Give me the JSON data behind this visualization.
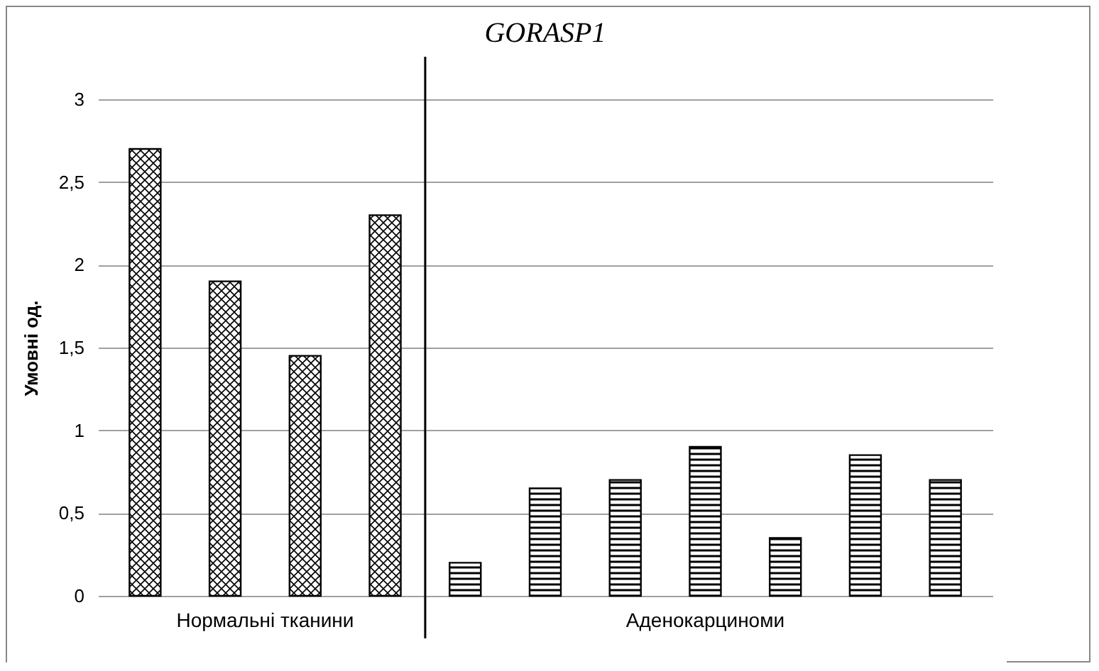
{
  "chart_data": {
    "type": "bar",
    "title": "GORASP1",
    "ylabel": "Умовні од.",
    "categories": [
      null,
      null,
      null,
      null,
      null,
      null,
      null,
      null,
      null,
      null,
      null
    ],
    "series": [
      {
        "name": "Нормальні тканини",
        "color": "#000000",
        "values": [
          2.7,
          1.9,
          1.45,
          2.3,
          null,
          null,
          null,
          null,
          null,
          null,
          null
        ]
      },
      {
        "name": "Аденокарциноми",
        "color": "#000000",
        "values": [
          null,
          null,
          null,
          null,
          0.2,
          0.65,
          0.7,
          0.9,
          0.35,
          0.85,
          0.7
        ]
      }
    ],
    "ylim": [
      0,
      3
    ],
    "yticks": [
      0,
      {
        "value": 0.5,
        "label": "0,5"
      },
      1,
      {
        "value": 1.5,
        "label": "1,5"
      },
      2,
      {
        "value": 2.5,
        "label": "2,5"
      },
      3
    ],
    "grid": "y"
  }
}
